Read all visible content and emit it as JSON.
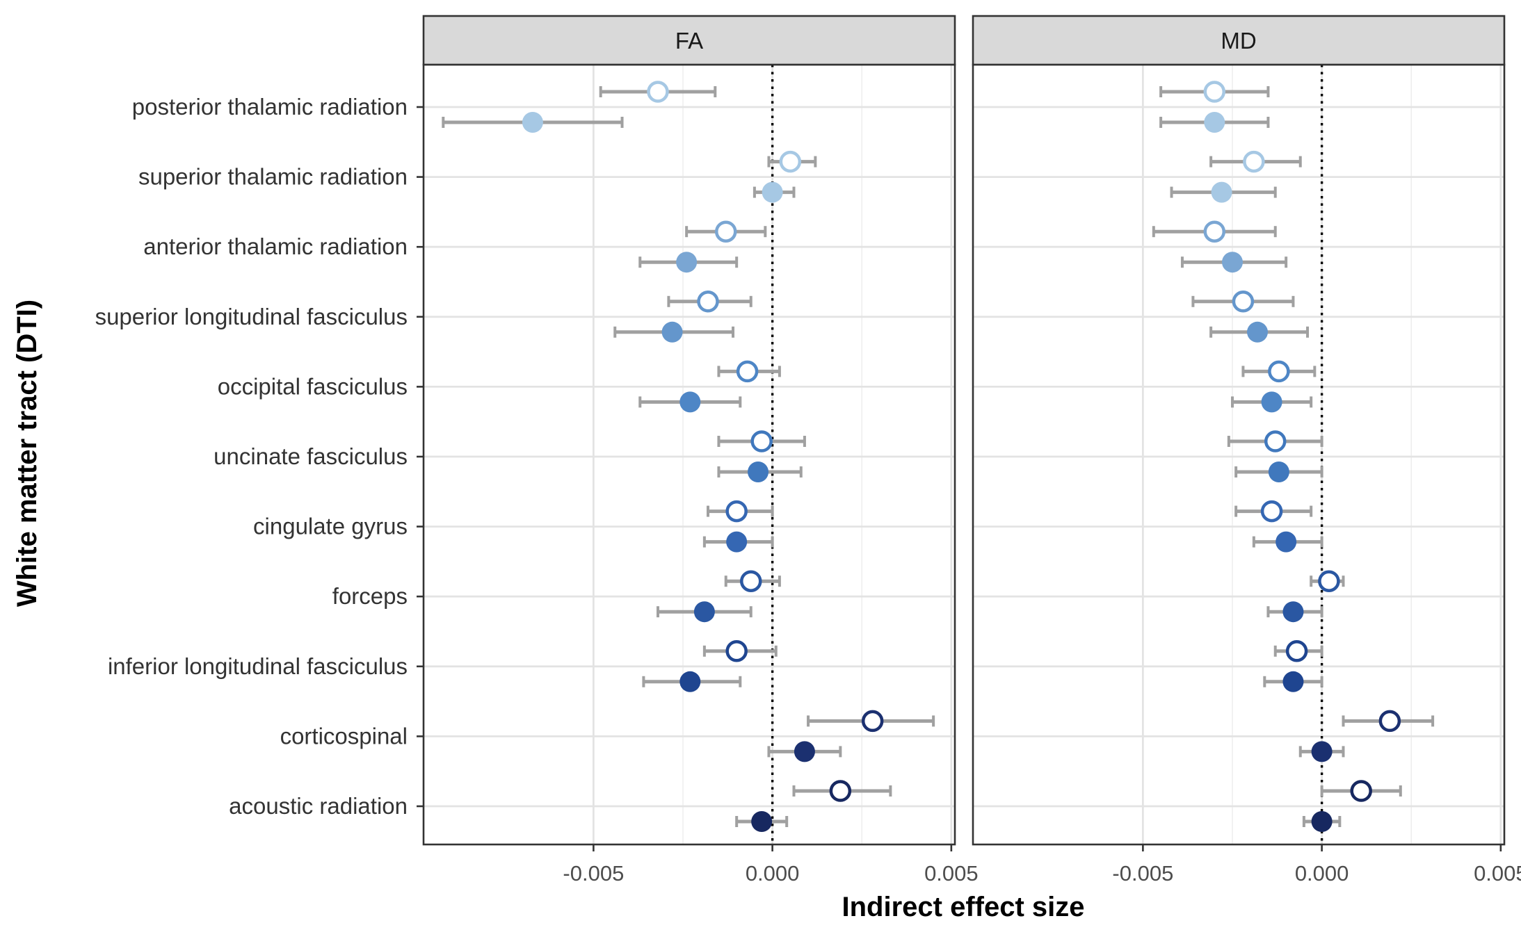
{
  "chart_data": {
    "type": "scatter",
    "xlabel": "Indirect effect size",
    "ylabel": "White matter tract (DTI)",
    "xlim": [
      -0.00975,
      0.0051
    ],
    "x_ticks": [
      -0.005,
      0.0,
      0.005
    ],
    "x_tick_labels": [
      "-0.005",
      "0.000",
      "0.005"
    ],
    "reference_line_x": 0,
    "grid": true,
    "categories": [
      "posterior thalamic radiation",
      "superior thalamic radiation",
      "anterior thalamic radiation",
      "superior longitudinal fasciculus",
      "occipital fasciculus",
      "uncinate fasciculus",
      "cingulate gyrus",
      "forceps ",
      "inferior longitudinal fasciculus",
      "corticospinal",
      "acoustic radiation"
    ],
    "colors": [
      "#a6c8e4",
      "#a6c8e4",
      "#7aa6d3",
      "#6496cc",
      "#4e86c6",
      "#4078bd",
      "#3567b3",
      "#2a57a2",
      "#1f4590",
      "#1b3070",
      "#172860"
    ],
    "error_bar_color": "#a0a0a0",
    "panels": [
      {
        "label": "FA",
        "open": [
          {
            "est": -0.0032,
            "lo": -0.0048,
            "hi": -0.0016
          },
          {
            "est": 0.0005,
            "lo": -0.0001,
            "hi": 0.0012
          },
          {
            "est": -0.0013,
            "lo": -0.0024,
            "hi": -0.0002
          },
          {
            "est": -0.0018,
            "lo": -0.0029,
            "hi": -0.0006
          },
          {
            "est": -0.0007,
            "lo": -0.0015,
            "hi": 0.0002
          },
          {
            "est": -0.0003,
            "lo": -0.0015,
            "hi": 0.0009
          },
          {
            "est": -0.001,
            "lo": -0.0018,
            "hi": 0.0
          },
          {
            "est": -0.0006,
            "lo": -0.0013,
            "hi": 0.0002
          },
          {
            "est": -0.001,
            "lo": -0.0019,
            "hi": 0.0001
          },
          {
            "est": 0.0028,
            "lo": 0.001,
            "hi": 0.0045
          },
          {
            "est": 0.0019,
            "lo": 0.0006,
            "hi": 0.0033
          }
        ],
        "filled": [
          {
            "est": -0.0067,
            "lo": -0.0092,
            "hi": -0.0042
          },
          {
            "est": 0.0,
            "lo": -0.0005,
            "hi": 0.0006
          },
          {
            "est": -0.0024,
            "lo": -0.0037,
            "hi": -0.001
          },
          {
            "est": -0.0028,
            "lo": -0.0044,
            "hi": -0.0011
          },
          {
            "est": -0.0023,
            "lo": -0.0037,
            "hi": -0.0009
          },
          {
            "est": -0.0004,
            "lo": -0.0015,
            "hi": 0.0008
          },
          {
            "est": -0.001,
            "lo": -0.0019,
            "hi": 0.0
          },
          {
            "est": -0.0019,
            "lo": -0.0032,
            "hi": -0.0006
          },
          {
            "est": -0.0023,
            "lo": -0.0036,
            "hi": -0.0009
          },
          {
            "est": 0.0009,
            "lo": -0.0001,
            "hi": 0.0019
          },
          {
            "est": -0.0003,
            "lo": -0.001,
            "hi": 0.0004
          }
        ]
      },
      {
        "label": "MD",
        "open": [
          {
            "est": -0.003,
            "lo": -0.0045,
            "hi": -0.0015
          },
          {
            "est": -0.0019,
            "lo": -0.0031,
            "hi": -0.0006
          },
          {
            "est": -0.003,
            "lo": -0.0047,
            "hi": -0.0013
          },
          {
            "est": -0.0022,
            "lo": -0.0036,
            "hi": -0.0008
          },
          {
            "est": -0.0012,
            "lo": -0.0022,
            "hi": -0.0002
          },
          {
            "est": -0.0013,
            "lo": -0.0026,
            "hi": 0.0
          },
          {
            "est": -0.0014,
            "lo": -0.0024,
            "hi": -0.0003
          },
          {
            "est": 0.0002,
            "lo": -0.0003,
            "hi": 0.0006
          },
          {
            "est": -0.0007,
            "lo": -0.0013,
            "hi": 0.0
          },
          {
            "est": 0.0019,
            "lo": 0.0006,
            "hi": 0.0031
          },
          {
            "est": 0.0011,
            "lo": 0.0,
            "hi": 0.0022
          }
        ],
        "filled": [
          {
            "est": -0.003,
            "lo": -0.0045,
            "hi": -0.0015
          },
          {
            "est": -0.0028,
            "lo": -0.0042,
            "hi": -0.0013
          },
          {
            "est": -0.0025,
            "lo": -0.0039,
            "hi": -0.001
          },
          {
            "est": -0.0018,
            "lo": -0.0031,
            "hi": -0.0004
          },
          {
            "est": -0.0014,
            "lo": -0.0025,
            "hi": -0.0003
          },
          {
            "est": -0.0012,
            "lo": -0.0024,
            "hi": 0.0
          },
          {
            "est": -0.001,
            "lo": -0.0019,
            "hi": 0.0
          },
          {
            "est": -0.0008,
            "lo": -0.0015,
            "hi": 0.0
          },
          {
            "est": -0.0008,
            "lo": -0.0016,
            "hi": 0.0
          },
          {
            "est": 0.0,
            "lo": -0.0006,
            "hi": 0.0006
          },
          {
            "est": 0.0,
            "lo": -0.0005,
            "hi": 0.0005
          }
        ]
      }
    ]
  }
}
